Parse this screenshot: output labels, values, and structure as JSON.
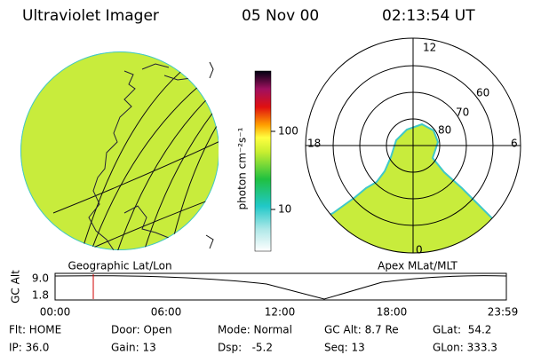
{
  "header": {
    "instrument": "Ultraviolet Imager",
    "date": "05 Nov 00",
    "time": "02:13:54 UT"
  },
  "colorbar": {
    "label": "photon cm⁻²s⁻¹",
    "ticks": [
      "100",
      "10"
    ]
  },
  "polar": {
    "mlt_labels": [
      "12",
      "18",
      "6",
      "0"
    ],
    "lat_labels": [
      "60",
      "70",
      "80"
    ]
  },
  "map_titles": {
    "left": "Geographic Lat/Lon",
    "right": "Apex MLat/MLT"
  },
  "altitude": {
    "label": "GC Alt",
    "yticks": [
      "9.0",
      "1.8"
    ],
    "xticks": [
      "00:00",
      "06:00",
      "12:00",
      "18:00",
      "23:59"
    ]
  },
  "status": {
    "rows": [
      [
        "Flt: HOME",
        "Door: Open",
        "Mode: Normal",
        "GC Alt: 8.7 Re",
        "GLat:  54.2"
      ],
      [
        "IP: 36.0",
        "Gain: 13",
        "Dsp:   -5.2",
        "Seq: 13",
        "GLon: 333.3"
      ]
    ]
  }
}
